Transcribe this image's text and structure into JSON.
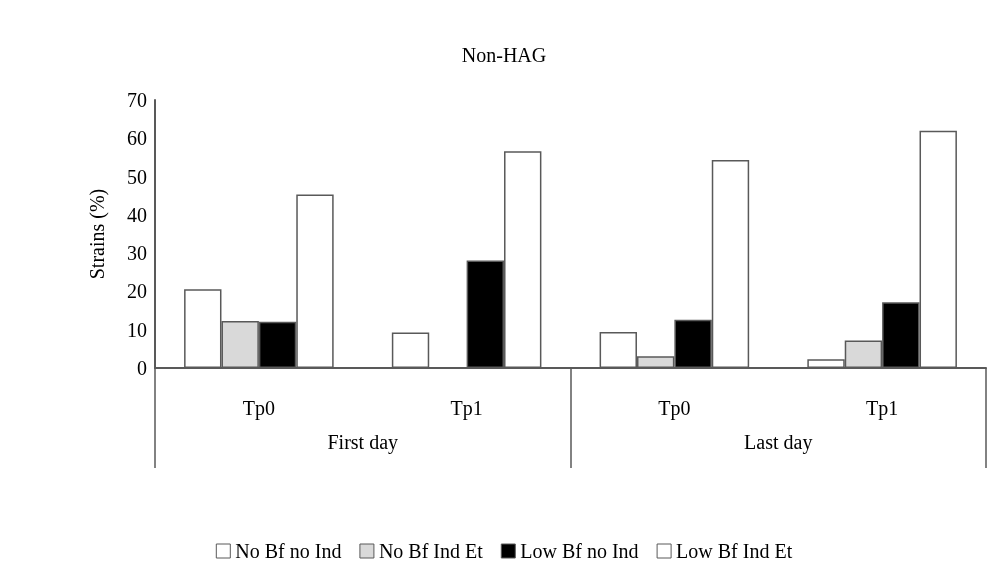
{
  "chart_data": {
    "type": "bar",
    "title": "Non-HAG",
    "ylabel": "Strains (%)",
    "categories": [
      "Tp0",
      "Tp1",
      "Tp0",
      "Tp1"
    ],
    "annotations": [
      "First day",
      "Last day"
    ],
    "series": [
      {
        "name": "No Bf no Ind",
        "color": "#ffffff",
        "values": [
          20.6,
          9.3,
          9.4,
          2.3
        ]
      },
      {
        "name": "No Bf Ind Et",
        "color": "#d9d9d9",
        "values": [
          12.3,
          null,
          3.1,
          7.2
        ]
      },
      {
        "name": "Low Bf no Ind",
        "color": "#000000",
        "values": [
          12.1,
          28.1,
          12.6,
          17.2
        ]
      },
      {
        "name": "Low Bf Ind Et",
        "color": "#ffffff",
        "values": [
          45.3,
          56.6,
          54.3,
          62
        ]
      }
    ],
    "ylim": [
      0,
      70
    ],
    "yticks": [
      0,
      10,
      20,
      30,
      40,
      50,
      60,
      70
    ],
    "grid": false,
    "legend": "bottom"
  }
}
